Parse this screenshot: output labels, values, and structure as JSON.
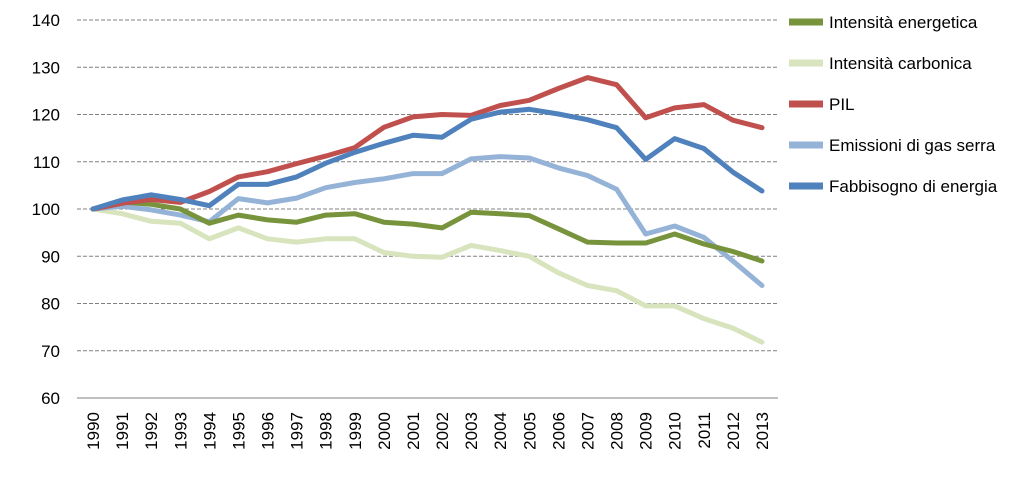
{
  "chart_data": {
    "type": "line",
    "title": "",
    "xlabel": "",
    "ylabel": "",
    "ylim": [
      60,
      140
    ],
    "yticks": [
      60,
      70,
      80,
      90,
      100,
      110,
      120,
      130,
      140
    ],
    "grid": "horizontal dashed",
    "legend_placement": "right",
    "categories": [
      "1990",
      "1991",
      "1992",
      "1993",
      "1994",
      "1995",
      "1996",
      "1997",
      "1998",
      "1999",
      "2000",
      "2001",
      "2002",
      "2003",
      "2004",
      "2005",
      "2006",
      "2007",
      "2008",
      "2009",
      "2010",
      "2011",
      "2012",
      "2013"
    ],
    "series": [
      {
        "name": "Intensità energetica",
        "color": "#77933c",
        "values": [
          100,
          101.5,
          101,
          100,
          97,
          98.7,
          97.7,
          97.2,
          98.7,
          99,
          97.2,
          96.8,
          96,
          99.3,
          99,
          98.6,
          95.8,
          93,
          92.8,
          92.8,
          94.7,
          92.6,
          91,
          89
        ]
      },
      {
        "name": "Intensità carbonica",
        "color": "#d7e4bd",
        "values": [
          100,
          99,
          97.4,
          97,
          93.7,
          96,
          93.7,
          93,
          93.7,
          93.7,
          90.8,
          90,
          89.8,
          92.3,
          91.2,
          90,
          86.5,
          83.8,
          82.7,
          79.5,
          79.5,
          76.8,
          74.8,
          71.8
        ]
      },
      {
        "name": "PIL",
        "color": "#c0504d",
        "values": [
          100,
          101.2,
          102,
          101.4,
          103.7,
          106.8,
          107.9,
          109.6,
          111.2,
          113,
          117.3,
          119.5,
          120,
          119.8,
          121.9,
          123,
          125.5,
          127.8,
          126.3,
          119.3,
          121.4,
          122.1,
          118.8,
          117.2
        ]
      },
      {
        "name": "Emissioni di gas serra",
        "color": "#95b3d7",
        "values": [
          100,
          100.6,
          99.8,
          98.7,
          97.3,
          102.2,
          101.3,
          102.3,
          104.5,
          105.6,
          106.4,
          107.5,
          107.5,
          110.6,
          111.1,
          110.8,
          108.7,
          107.1,
          104.2,
          94.7,
          96.4,
          94,
          89,
          83.8
        ]
      },
      {
        "name": "Fabbisogno di energia",
        "color": "#4f81bd",
        "values": [
          100,
          101.9,
          103,
          102,
          100.7,
          105.2,
          105.2,
          106.8,
          109.7,
          112,
          113.9,
          115.6,
          115.2,
          119,
          120.5,
          121.1,
          120.1,
          118.9,
          117.2,
          110.5,
          114.9,
          112.8,
          107.8,
          103.8
        ]
      }
    ]
  }
}
